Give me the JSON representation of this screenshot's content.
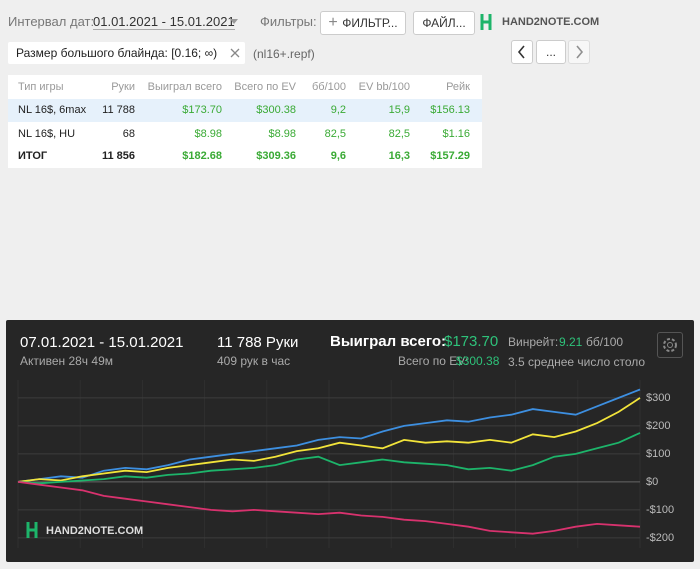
{
  "toolbar": {
    "date_label": "Интервал дат:",
    "date_range": "01.01.2021 - 15.01.2021",
    "filters_label": "Фильтры:",
    "filter_button": "ФИЛЬТР...",
    "file_button": "ФАЙЛ...",
    "logo": "HAND2NOTE.COM"
  },
  "filter_chip": {
    "label": "Размер большого блайнда: [0.16; ∞)",
    "file": "(nl16+.repf)"
  },
  "nav": {
    "more": "..."
  },
  "table": {
    "columns": [
      "Тип игры",
      "Руки",
      "Выиграл всего",
      "Всего по EV",
      "бб/100",
      "EV bb/100",
      "Рейк"
    ],
    "rows": [
      [
        "NL 16$, 6max",
        "11 788",
        "$173.70",
        "$300.38",
        "9,2",
        "15,9",
        "$156.13"
      ],
      [
        "NL 16$, HU",
        "68",
        "$8.98",
        "$8.98",
        "82,5",
        "82,5",
        "$1.16"
      ],
      [
        "ИТОГ",
        "11 856",
        "$182.68",
        "$309.36",
        "9,6",
        "16,3",
        "$157.29"
      ]
    ]
  },
  "panel": {
    "date_range": "07.01.2021 - 15.01.2021",
    "active": "Активен 28ч 49м",
    "hands": "11 788 Руки",
    "hands_per_hour": "409 рук в час",
    "won_label": "Выиграл всего:",
    "won_value": "$173.70",
    "winrate_label": "Винрейт:",
    "winrate_value": "9.21",
    "winrate_unit": "бб/100",
    "ev_label": "Всего по EV:",
    "ev_value": "$300.38",
    "tables": "3.5 среднее число столов",
    "logo": "HAND2NOTE.COM"
  },
  "chart_data": {
    "type": "line",
    "ylim": [
      -236,
      364
    ],
    "yticks": [
      {
        "value": 300,
        "label": "$300"
      },
      {
        "value": 200,
        "label": "$200"
      },
      {
        "value": 100,
        "label": "$100"
      },
      {
        "value": 0,
        "label": "$0"
      },
      {
        "value": -100,
        "label": "-$100"
      },
      {
        "value": -200,
        "label": "-$200"
      }
    ],
    "grid": true,
    "series": [
      {
        "color": "#3d8fe0",
        "values": [
          0,
          10,
          20,
          15,
          40,
          50,
          45,
          60,
          80,
          90,
          100,
          110,
          120,
          130,
          150,
          160,
          155,
          180,
          200,
          210,
          220,
          215,
          230,
          240,
          260,
          250,
          240,
          270,
          300,
          330
        ]
      },
      {
        "color": "#f2e43a",
        "values": [
          0,
          10,
          5,
          20,
          30,
          40,
          35,
          50,
          60,
          70,
          80,
          75,
          90,
          110,
          120,
          140,
          130,
          120,
          150,
          140,
          145,
          140,
          150,
          140,
          170,
          160,
          180,
          210,
          250,
          300
        ]
      },
      {
        "color": "#1db46a",
        "values": [
          0,
          -5,
          0,
          5,
          10,
          20,
          15,
          25,
          30,
          40,
          45,
          50,
          60,
          80,
          90,
          60,
          70,
          80,
          70,
          65,
          60,
          45,
          50,
          40,
          60,
          90,
          100,
          120,
          140,
          175
        ]
      },
      {
        "color": "#d8326e",
        "values": [
          0,
          -10,
          -20,
          -30,
          -50,
          -60,
          -70,
          -80,
          -90,
          -100,
          -105,
          -100,
          -105,
          -110,
          -115,
          -110,
          -120,
          -125,
          -135,
          -140,
          -150,
          -160,
          -175,
          -180,
          -185,
          -175,
          -160,
          -150,
          -155,
          -160
        ]
      }
    ]
  }
}
